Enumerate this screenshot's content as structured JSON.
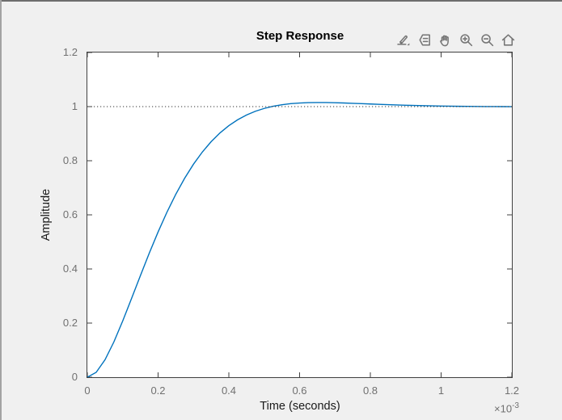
{
  "window": {
    "background": "#f0f0f0"
  },
  "toolbar": {
    "icons": [
      {
        "name": "brush-icon",
        "label": "Brush/Select Data"
      },
      {
        "name": "datatips-icon",
        "label": "Data Tips"
      },
      {
        "name": "pan-icon",
        "label": "Pan"
      },
      {
        "name": "zoom-in-icon",
        "label": "Zoom In"
      },
      {
        "name": "zoom-out-icon",
        "label": "Zoom Out"
      },
      {
        "name": "home-icon",
        "label": "Restore View"
      }
    ]
  },
  "chart_data": {
    "type": "line",
    "title": "Step Response",
    "xlabel": "Time (seconds)",
    "ylabel": "Amplitude",
    "x_multiplier_base": "×10",
    "x_multiplier_exp": "-3",
    "xlim": [
      0,
      1.2
    ],
    "ylim": [
      0,
      1.2
    ],
    "xticks": [
      0,
      0.2,
      0.4,
      0.6,
      0.8,
      1,
      1.2
    ],
    "xtick_labels": [
      "0",
      "0.2",
      "0.4",
      "0.6",
      "0.8",
      "1",
      "1.2"
    ],
    "yticks": [
      0,
      0.2,
      0.4,
      0.6,
      0.8,
      1,
      1.2
    ],
    "ytick_labels": [
      "0",
      "0.2",
      "0.4",
      "0.6",
      "0.8",
      "1",
      "1.2"
    ],
    "grid": false,
    "legend": null,
    "series": [
      {
        "name": "step-response",
        "color": "#0072BD",
        "style": "solid",
        "x": [
          0,
          0.025,
          0.05,
          0.075,
          0.1,
          0.125,
          0.15,
          0.175,
          0.2,
          0.225,
          0.25,
          0.275,
          0.3,
          0.325,
          0.35,
          0.375,
          0.4,
          0.425,
          0.45,
          0.475,
          0.5,
          0.525,
          0.55,
          0.575,
          0.6,
          0.625,
          0.65,
          0.675,
          0.7,
          0.725,
          0.75,
          0.775,
          0.8,
          0.825,
          0.85,
          0.875,
          0.9,
          0.925,
          0.95,
          0.975,
          1.0,
          1.025,
          1.05,
          1.075,
          1.1,
          1.125,
          1.15,
          1.175,
          1.2
        ],
        "y": [
          0,
          0.0179,
          0.0645,
          0.1302,
          0.2077,
          0.2909,
          0.3755,
          0.4583,
          0.5368,
          0.6097,
          0.6759,
          0.7351,
          0.7871,
          0.8321,
          0.8705,
          0.9028,
          0.9296,
          0.9514,
          0.969,
          0.9828,
          0.9933,
          1.0013,
          1.007,
          1.0109,
          1.0133,
          1.0147,
          1.0152,
          1.015,
          1.0143,
          1.0134,
          1.0122,
          1.011,
          1.0097,
          1.0084,
          1.0072,
          1.0061,
          1.0051,
          1.0042,
          1.0034,
          1.0027,
          1.0021,
          1.0016,
          1.0011,
          1.0008,
          1.0005,
          1.0003,
          1.0001,
          1.0,
          0.9999
        ]
      },
      {
        "name": "steady-state",
        "color": "#333333",
        "style": "dotted",
        "x": [
          0,
          1.2
        ],
        "y": [
          1,
          1
        ]
      }
    ]
  },
  "colors": {
    "figure_bg": "#f0f0f0",
    "axes_bg": "#ffffff",
    "axis": "#404040",
    "tick_label": "#707070",
    "curve": "#0072BD",
    "reference_dotted": "#333333",
    "title": "#000000",
    "icon": "#757575"
  }
}
